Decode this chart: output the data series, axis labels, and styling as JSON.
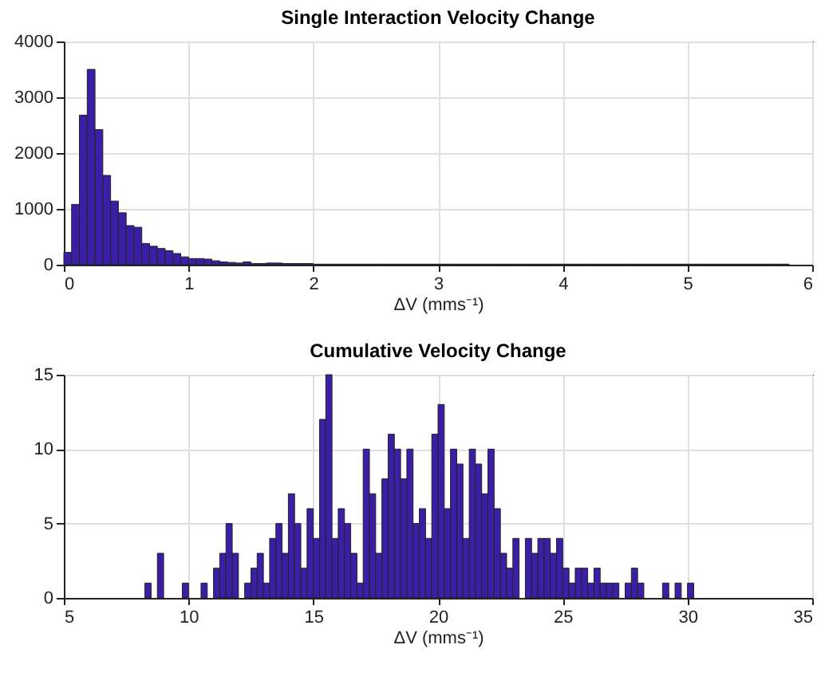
{
  "chart_data": [
    {
      "type": "histogram",
      "title": "Single Interaction Velocity Change",
      "xlabel": "ΔV (mms⁻¹)",
      "color": "#3a1fa6",
      "bins": [
        0,
        0.0625,
        0.125,
        0.1875,
        0.25,
        0.3125,
        0.375,
        0.4375,
        0.5,
        0.5625,
        0.625,
        0.6875,
        0.75,
        0.8125,
        0.875,
        0.9375,
        1,
        1.0625,
        1.125,
        1.1875,
        1.25,
        1.3125,
        1.375,
        1.4375,
        1.5,
        1.5625,
        1.625,
        1.6875,
        1.75,
        1.8125,
        1.875,
        1.9375,
        2,
        2.0625,
        2.125,
        2.1875,
        2.25,
        2.3125,
        2.375,
        2.4375,
        2.5,
        2.5625,
        2.625,
        2.6875,
        2.75,
        2.8125,
        2.875,
        2.9375,
        3,
        3.0625,
        3.125,
        3.1875,
        3.25,
        3.3125,
        3.375,
        3.4375,
        3.5,
        3.5625,
        3.625,
        3.6875,
        3.75,
        3.8125,
        3.875,
        3.9375,
        4,
        4.0625,
        4.125,
        4.1875,
        4.25,
        4.3125,
        4.375,
        4.4375,
        4.5,
        4.5625,
        4.625,
        4.6875,
        4.75,
        4.8125,
        4.875,
        4.9375,
        5,
        5.0625,
        5.125,
        5.1875,
        5.25,
        5.3125,
        5.375,
        5.4375,
        5.5,
        5.5625,
        5.625,
        5.6875,
        5.75,
        5.8125,
        5.875,
        5.9375,
        6
      ],
      "values": [
        220,
        1080,
        2680,
        3500,
        2420,
        1600,
        1140,
        930,
        700,
        670,
        380,
        330,
        290,
        250,
        200,
        140,
        110,
        110,
        100,
        70,
        50,
        40,
        30,
        50,
        20,
        20,
        30,
        30,
        20,
        20,
        20,
        20,
        10,
        10,
        10,
        10,
        10,
        10,
        10,
        10,
        10,
        10,
        10,
        10,
        10,
        10,
        10,
        10,
        10,
        10,
        10,
        10,
        10,
        10,
        10,
        10,
        10,
        10,
        10,
        10,
        10,
        10,
        10,
        10,
        10,
        10,
        10,
        10,
        10,
        10,
        10,
        10,
        10,
        10,
        10,
        10,
        10,
        10,
        10,
        10,
        10,
        10,
        10,
        10,
        10,
        10,
        10,
        10,
        10,
        10,
        10,
        10,
        10,
        0,
        0,
        0
      ],
      "xlim": [
        0,
        6
      ],
      "xticks": [
        0,
        1,
        2,
        3,
        4,
        5,
        6
      ],
      "ylim": [
        0,
        4000
      ],
      "yticks": [
        0,
        1000,
        2000,
        3000,
        4000
      ],
      "grid": true
    },
    {
      "type": "histogram",
      "title": "Cumulative Velocity Change",
      "xlabel": "ΔV (mms⁻¹)",
      "color": "#3a1fa6",
      "bins": [
        8.25,
        8.5,
        8.75,
        9,
        9.25,
        9.5,
        9.75,
        10,
        10.25,
        10.5,
        10.75,
        11,
        11.25,
        11.5,
        11.75,
        12,
        12.25,
        12.5,
        12.75,
        13,
        13.25,
        13.5,
        13.75,
        14,
        14.25,
        14.5,
        14.75,
        15,
        15.25,
        15.5,
        15.75,
        16,
        16.25,
        16.5,
        16.75,
        17,
        17.25,
        17.5,
        17.75,
        18,
        18.25,
        18.5,
        18.75,
        19,
        19.25,
        19.5,
        19.75,
        20,
        20.25,
        20.5,
        20.75,
        21,
        21.25,
        21.5,
        21.75,
        22,
        22.25,
        22.5,
        22.75,
        23,
        23.25,
        23.5,
        23.75,
        24,
        24.25,
        24.5,
        24.75,
        25,
        25.25,
        25.5,
        25.75,
        26,
        26.25,
        26.5,
        26.75,
        27,
        27.25,
        27.5,
        27.75,
        28,
        28.25,
        28.5,
        28.75,
        29,
        29.25,
        29.5,
        29.75,
        30,
        30.25
      ],
      "values": [
        1,
        0,
        3,
        0,
        0,
        0,
        1,
        0,
        0,
        1,
        0,
        2,
        3,
        5,
        3,
        0,
        1,
        2,
        3,
        1,
        4,
        5,
        3,
        7,
        5,
        2,
        6,
        4,
        12,
        15,
        4,
        6,
        5,
        3,
        1,
        10,
        7,
        3,
        8,
        11,
        10,
        8,
        10,
        5,
        6,
        4,
        11,
        13,
        6,
        10,
        9,
        4,
        10,
        9,
        7,
        10,
        6,
        3,
        2,
        4,
        0,
        4,
        3,
        4,
        4,
        3,
        4,
        2,
        1,
        2,
        2,
        1,
        2,
        1,
        1,
        1,
        0,
        1,
        2,
        1,
        0,
        0,
        0,
        1,
        0,
        1,
        0,
        1
      ],
      "xlim": [
        5,
        35
      ],
      "xticks": [
        5,
        10,
        15,
        20,
        25,
        30,
        35
      ],
      "ylim": [
        0,
        15
      ],
      "yticks": [
        0,
        5,
        10,
        15
      ],
      "grid": true
    }
  ]
}
